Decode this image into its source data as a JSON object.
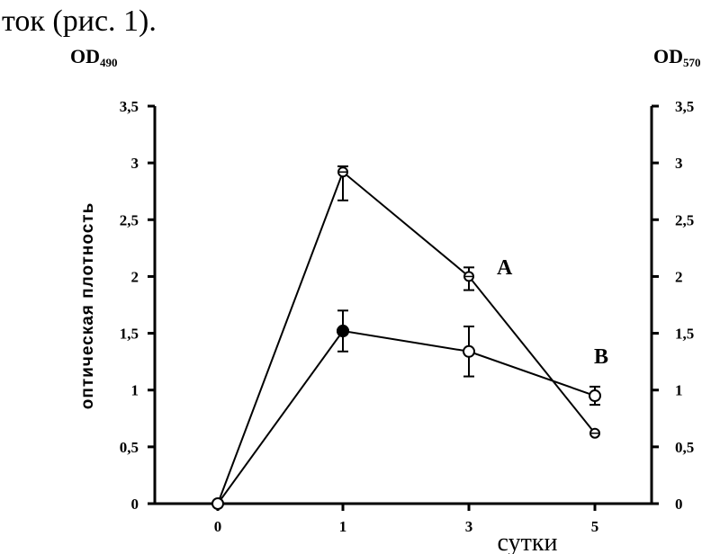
{
  "caption_fragment": "ток (рис. 1).",
  "chart_data": {
    "type": "line",
    "categories": [
      "0",
      "1",
      "3",
      "5"
    ],
    "xlabel": "сутки",
    "ylabel": "оптическая плотность",
    "left_axis_label": {
      "main": "OD",
      "sub": "490"
    },
    "right_axis_label": {
      "main": "OD",
      "sub": "570"
    },
    "ylim": [
      0,
      3.5
    ],
    "yticks": [
      "0",
      "0,5",
      "1",
      "1,5",
      "2",
      "2,5",
      "3",
      "3,5"
    ],
    "ytick_values": [
      0,
      0.5,
      1,
      1.5,
      2,
      2.5,
      3,
      3.5
    ],
    "grid": false,
    "legend": "none",
    "series": [
      {
        "name": "А",
        "marker": "crossed-circle",
        "values": [
          0,
          2.92,
          2.0,
          0.62
        ],
        "error_up": [
          0,
          0.05,
          0.08,
          0
        ],
        "error_down": [
          0,
          0.25,
          0.12,
          0
        ]
      },
      {
        "name": "В",
        "marker": "open-circle",
        "values": [
          0,
          1.52,
          1.34,
          0.95
        ],
        "error_up": [
          0,
          0.18,
          0.22,
          0.08
        ],
        "error_down": [
          0,
          0.18,
          0.22,
          0.08
        ]
      }
    ],
    "extra_markers": [
      {
        "series": "В",
        "category": "1",
        "value": 1.52,
        "marker": "filled-circle"
      }
    ]
  }
}
